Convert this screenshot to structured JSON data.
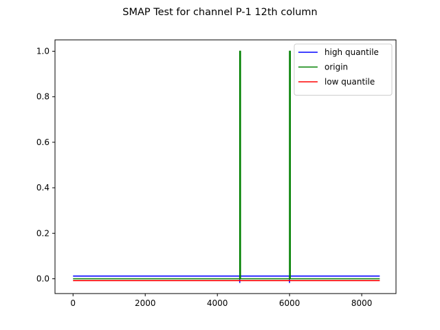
{
  "chart_data": {
    "type": "line",
    "title": "SMAP Test for channel P-1 12th column",
    "xlabel": "",
    "ylabel": "",
    "xlim": [
      -500,
      8950
    ],
    "ylim": [
      -0.065,
      1.05
    ],
    "xticks": [
      0,
      2000,
      4000,
      6000,
      8000
    ],
    "yticks": [
      0.0,
      0.2,
      0.4,
      0.6,
      0.8,
      1.0
    ],
    "xtick_labels": [
      "0",
      "2000",
      "4000",
      "6000",
      "8000"
    ],
    "ytick_labels": [
      "0.0",
      "0.2",
      "0.4",
      "0.6",
      "0.8",
      "1.0"
    ],
    "grid": false,
    "legend_position": "top-right",
    "series": [
      {
        "name": "high quantile",
        "color": "#0000ff",
        "x": [
          0,
          4620,
          4620,
          4620,
          6000,
          6000,
          6000,
          8500
        ],
        "y": [
          0.012,
          0.012,
          -0.018,
          0.012,
          0.012,
          -0.018,
          0.012,
          0.012
        ]
      },
      {
        "name": "origin",
        "color": "#008000",
        "x": [
          0,
          4620,
          4620,
          4640,
          4640,
          6000,
          6000,
          6020,
          6020,
          8500
        ],
        "y": [
          0.0,
          0.0,
          1.0,
          1.0,
          0.0,
          0.0,
          1.0,
          1.0,
          0.0,
          0.0
        ]
      },
      {
        "name": "low quantile",
        "color": "#ff0000",
        "x": [
          0,
          8500
        ],
        "y": [
          -0.008,
          -0.008
        ]
      }
    ]
  }
}
